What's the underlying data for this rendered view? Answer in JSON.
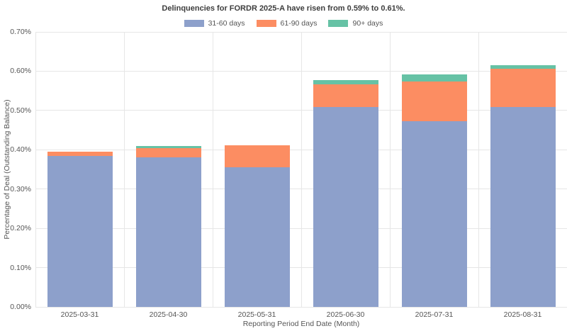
{
  "chart_data": {
    "type": "bar",
    "stacked": true,
    "title": "Delinquencies for FORDR 2025-A have risen from 0.59% to 0.61%.",
    "xlabel": "Reporting Period End Date (Month)",
    "ylabel": "Percentage of Deal (Outstanding Balance)",
    "categories": [
      "2025-03-31",
      "2025-04-30",
      "2025-05-31",
      "2025-06-30",
      "2025-07-31",
      "2025-08-31"
    ],
    "series": [
      {
        "name": "31-60 days",
        "color": "#8da0cb",
        "values": [
          0.385,
          0.38,
          0.355,
          0.509,
          0.472,
          0.509
        ]
      },
      {
        "name": "61-90 days",
        "color": "#fc8d62",
        "values": [
          0.011,
          0.025,
          0.056,
          0.058,
          0.101,
          0.097
        ]
      },
      {
        "name": "90+ days",
        "color": "#66c2a5",
        "values": [
          0.0,
          0.005,
          0.0,
          0.011,
          0.019,
          0.009
        ]
      }
    ],
    "totals": [
      0.396,
      0.41,
      0.411,
      0.578,
      0.592,
      0.615
    ],
    "ylim": [
      0,
      0.7
    ],
    "ytick_step": 0.1,
    "ytick_labels": [
      "0.00%",
      "0.10%",
      "0.20%",
      "0.30%",
      "0.40%",
      "0.50%",
      "0.60%",
      "0.70%"
    ],
    "legend_position": "top-center",
    "grid": true
  },
  "style": {
    "background": "#ffffff",
    "gridline_color": "#e6e6e6",
    "text_color": "#555555",
    "title_color": "#3d3d3d"
  }
}
